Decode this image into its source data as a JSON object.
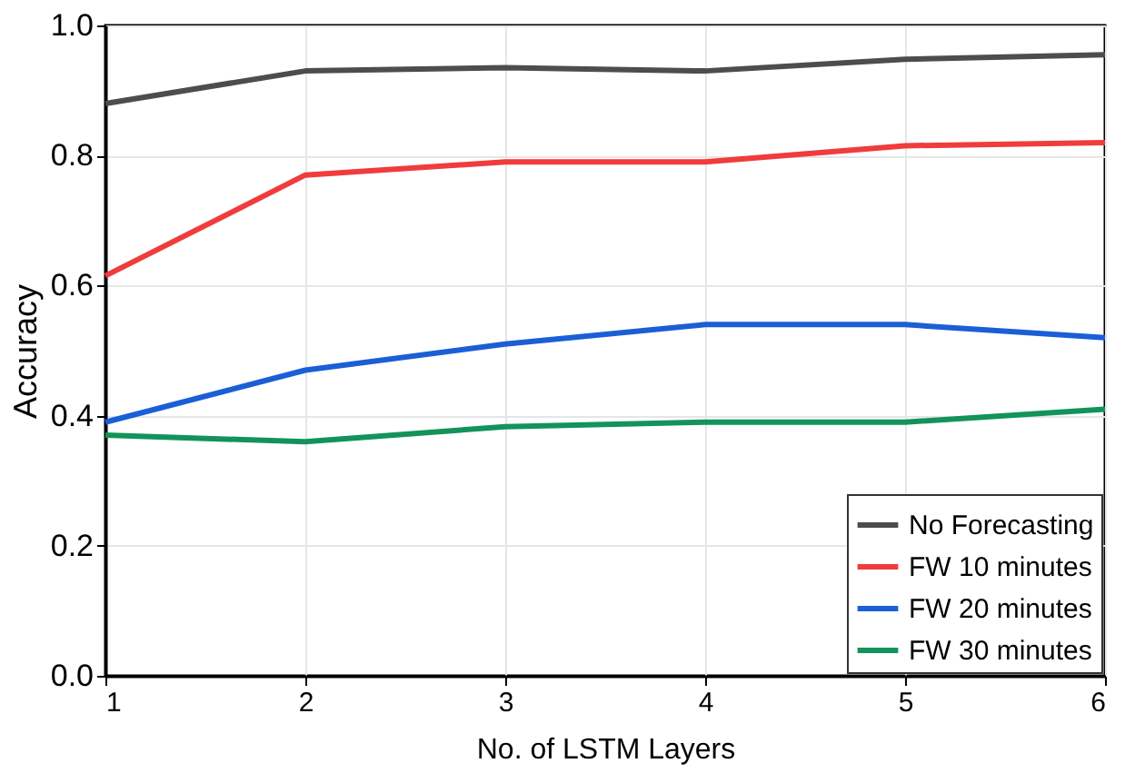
{
  "chart_data": {
    "type": "line",
    "xlabel": "No. of LSTM Layers",
    "ylabel": "Accuracy",
    "x": [
      1,
      2,
      3,
      4,
      5,
      6
    ],
    "series": [
      {
        "name": "No Forecasting",
        "color": "#4d4d4d",
        "values": [
          0.88,
          0.93,
          0.935,
          0.93,
          0.948,
          0.955
        ]
      },
      {
        "name": "FW 10 minutes",
        "color": "#f03c3c",
        "values": [
          0.615,
          0.77,
          0.79,
          0.79,
          0.815,
          0.82
        ]
      },
      {
        "name": "FW 20 minutes",
        "color": "#1a5fd6",
        "values": [
          0.39,
          0.47,
          0.51,
          0.54,
          0.54,
          0.52
        ]
      },
      {
        "name": "FW 30 minutes",
        "color": "#13935a",
        "values": [
          0.37,
          0.36,
          0.383,
          0.39,
          0.39,
          0.41
        ]
      }
    ],
    "xlim": [
      1,
      6
    ],
    "xticks": [
      1,
      2,
      3,
      4,
      5,
      6
    ],
    "ylim": [
      0.0,
      1.0
    ],
    "yticks": [
      {
        "value": 0,
        "label": "0.0"
      },
      0.2,
      0.4,
      0.6,
      0.8,
      {
        "value": 1,
        "label": "1.0"
      }
    ],
    "grid": true,
    "legend": "bottom right",
    "marker": "none",
    "line_style": "solid"
  }
}
